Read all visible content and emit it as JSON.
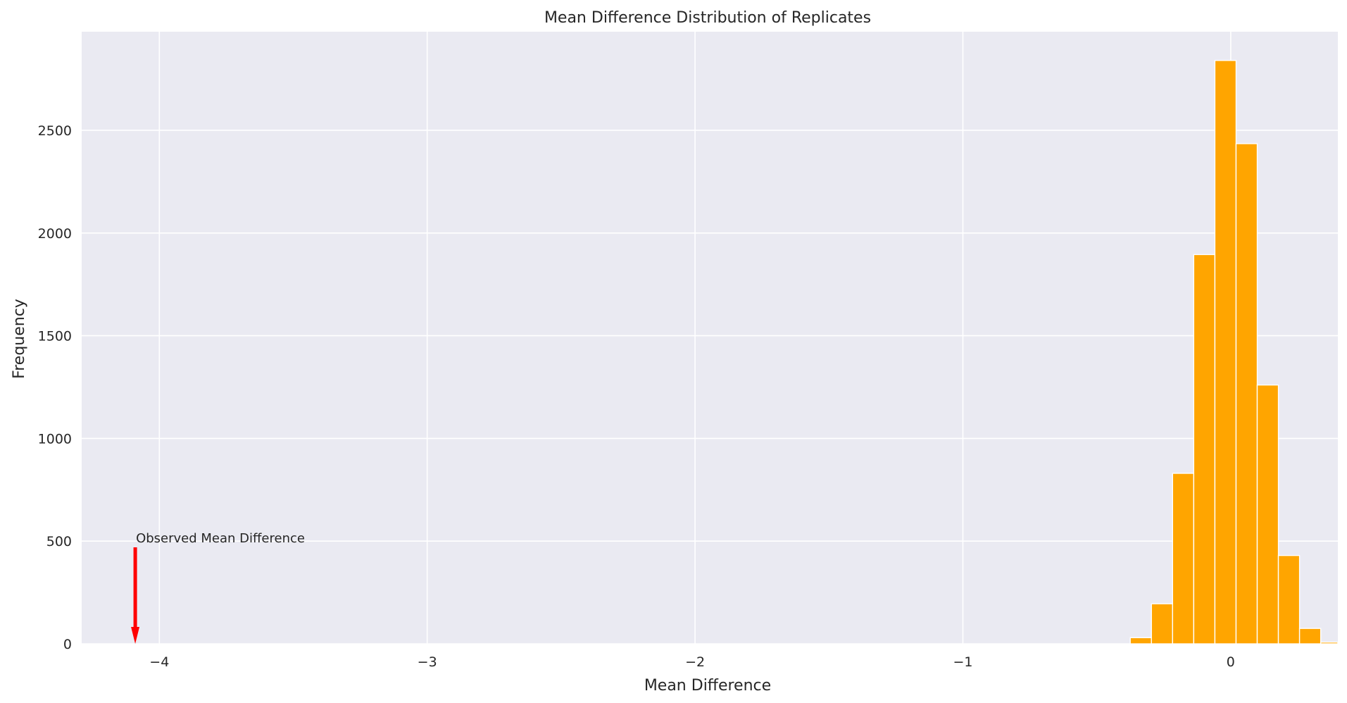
{
  "chart_data": {
    "type": "bar",
    "title": "Mean Difference Distribution of Replicates",
    "xlabel": "Mean Difference",
    "ylabel": "Frequency",
    "xlim": [
      -4.29,
      0.4
    ],
    "ylim": [
      0,
      2980
    ],
    "x_ticks": [
      -4,
      -3,
      -2,
      -1,
      0
    ],
    "x_tick_labels": [
      "−4",
      "−3",
      "−2",
      "−1",
      "0"
    ],
    "y_ticks": [
      0,
      500,
      1000,
      1500,
      2000,
      2500
    ],
    "y_tick_labels": [
      "0",
      "500",
      "1000",
      "1500",
      "2000",
      "2500"
    ],
    "grid": true,
    "background_color": "#eaeaf2",
    "bar_color": "#ffa500",
    "bin_width": 0.079,
    "bins": [
      {
        "x0": -0.375,
        "x1": -0.296,
        "count": 30
      },
      {
        "x0": -0.296,
        "x1": -0.217,
        "count": 195
      },
      {
        "x0": -0.217,
        "x1": -0.138,
        "count": 830
      },
      {
        "x0": -0.138,
        "x1": -0.059,
        "count": 1895
      },
      {
        "x0": -0.059,
        "x1": 0.02,
        "count": 2840
      },
      {
        "x0": 0.02,
        "x1": 0.099,
        "count": 2435
      },
      {
        "x0": 0.099,
        "x1": 0.178,
        "count": 1260
      },
      {
        "x0": 0.178,
        "x1": 0.257,
        "count": 430
      },
      {
        "x0": 0.257,
        "x1": 0.336,
        "count": 75
      },
      {
        "x0": 0.336,
        "x1": 0.415,
        "count": 8
      }
    ],
    "annotation": {
      "text": "Observed Mean Difference",
      "x": -4.09,
      "arrow_from_y": 470,
      "arrow_to_y": 0,
      "arrow_color": "#ff0000"
    }
  }
}
